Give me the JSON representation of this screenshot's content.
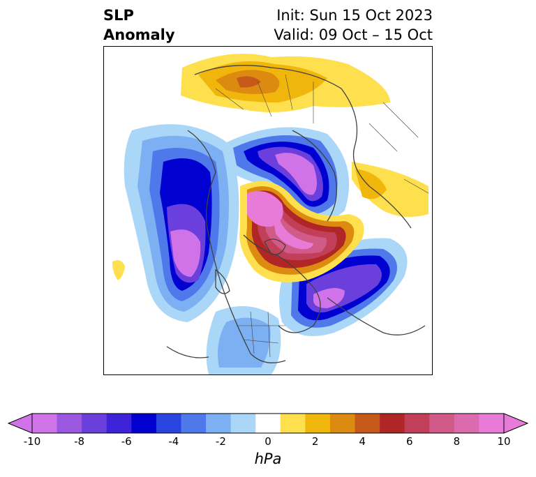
{
  "title": {
    "left_line1": "SLP",
    "left_line2": "Anomaly",
    "init": "Init: Sun 15 Oct 2023",
    "valid": "Valid: 09 Oct – 15 Oct"
  },
  "colorbar": {
    "label": "hPa",
    "ticks": [
      "-10",
      "-8",
      "-6",
      "-4",
      "-2",
      "0",
      "2",
      "4",
      "6",
      "8",
      "10"
    ],
    "levels": [
      -10,
      -9,
      -8,
      -7,
      -6,
      -5,
      -4,
      -3,
      -2,
      -1,
      1,
      2,
      3,
      4,
      5,
      6,
      7,
      8,
      9,
      10
    ],
    "colors": [
      "#d073e8",
      "#9c57e0",
      "#6a3fdc",
      "#3d22d8",
      "#0000d0",
      "#2a44e0",
      "#4f78ea",
      "#7cb0f2",
      "#aad6f8",
      "#ffffff",
      "#fee04f",
      "#f1b60c",
      "#dd8a10",
      "#c75918",
      "#b02626",
      "#c23f5a",
      "#d05a88",
      "#dc6aae",
      "#e87ad8"
    ],
    "extend": "both"
  },
  "map": {
    "projection": "north-polar-stereographic",
    "coastlines_color": "#404040"
  }
}
